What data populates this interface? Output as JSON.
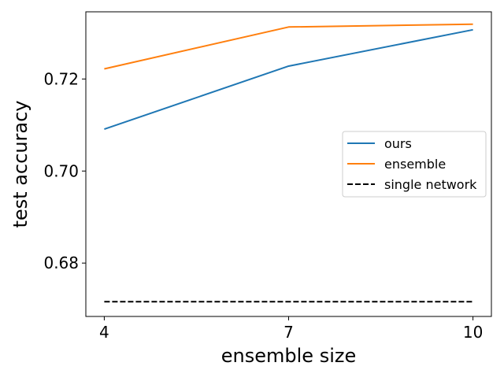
{
  "chart_data": {
    "type": "line",
    "title": "",
    "xlabel": "ensemble size",
    "ylabel": "test accuracy",
    "x": [
      4,
      7,
      10
    ],
    "xticks": [
      4,
      7,
      10
    ],
    "xtick_labels": [
      "4",
      "7",
      "10"
    ],
    "yticks": [
      0.68,
      0.7,
      0.72
    ],
    "ytick_labels": [
      "0.68",
      "0.70",
      "0.72"
    ],
    "xlim": [
      3.7,
      10.3
    ],
    "ylim": [
      0.6684,
      0.7346
    ],
    "grid": false,
    "legend_position": "center-right",
    "series": [
      {
        "name": "ours",
        "values": [
          0.7091,
          0.7228,
          0.7307
        ],
        "color": "#1f77b4",
        "style": "solid"
      },
      {
        "name": "ensemble",
        "values": [
          0.7222,
          0.7313,
          0.7319
        ],
        "color": "#ff7f0e",
        "style": "solid"
      },
      {
        "name": "single network",
        "values": [
          0.6716,
          0.6716,
          0.6716
        ],
        "color": "#000000",
        "style": "dashed"
      }
    ]
  }
}
